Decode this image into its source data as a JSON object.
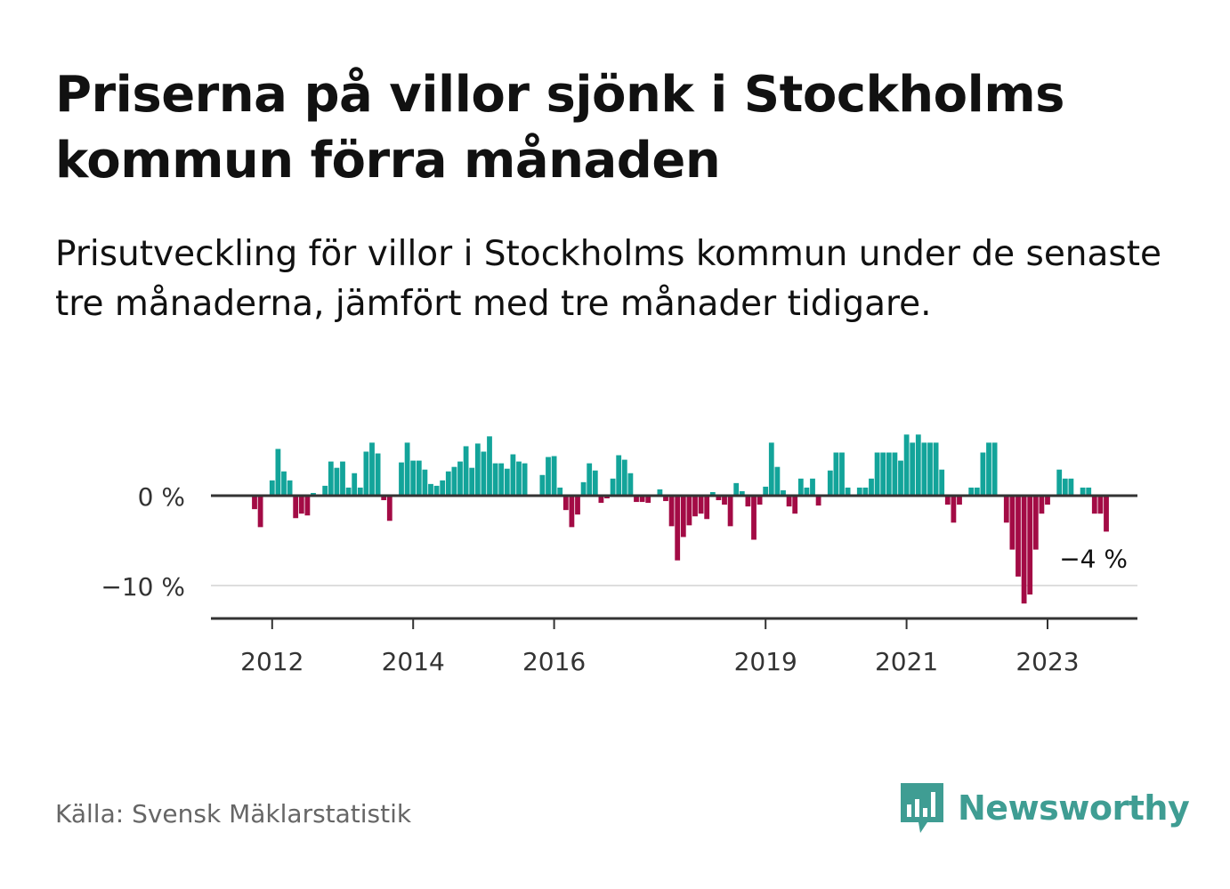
{
  "title": "Priserna på villor sjönk i Stockholms kommun förra månaden",
  "subtitle": "Prisutveckling för villor i Stockholms kommun under de senaste tre månaderna, jämfört med tre månader tidigare.",
  "source": "Källa: Svensk Mäklarstatistik",
  "brand": {
    "name": "Newsworthy",
    "icon": "newsworthy-logo-icon",
    "color": "#3f9d93"
  },
  "colors": {
    "positive": "#13a49a",
    "negative": "#a30b45",
    "axis": "#333333",
    "grid": "#dddddd"
  },
  "chart_data": {
    "type": "bar",
    "title": "Prisutveckling för villor i Stockholms kommun",
    "x_start": "2011-10",
    "x_step": "month",
    "ylim": [
      -14,
      6
    ],
    "y_ticks": [
      0,
      -10
    ],
    "y_tick_labels": [
      "0 %",
      "−10 %"
    ],
    "x_tick_labels": [
      "2012",
      "2014",
      "2016",
      "2019",
      "2021",
      "2023"
    ],
    "x_tick_indices": [
      3,
      27,
      51,
      87,
      111,
      135
    ],
    "values": [
      -1.5,
      -3.5,
      0,
      1.7,
      5.2,
      2.7,
      1.7,
      -2.5,
      -2,
      -2.2,
      0.3,
      0,
      1.1,
      3.8,
      3.1,
      3.8,
      0.9,
      2.5,
      0.9,
      4.9,
      5.9,
      4.7,
      -0.5,
      -2.8,
      0,
      3.7,
      5.9,
      3.9,
      3.9,
      2.9,
      1.3,
      1.1,
      1.7,
      2.7,
      3.2,
      3.8,
      5.5,
      3.1,
      5.8,
      4.9,
      6.6,
      3.6,
      3.6,
      3,
      4.6,
      3.8,
      3.6,
      0,
      0,
      2.3,
      4.3,
      4.4,
      0.9,
      -1.6,
      -3.5,
      -2.1,
      1.5,
      3.6,
      2.8,
      -0.8,
      -0.3,
      1.9,
      4.5,
      4,
      2.5,
      -0.7,
      -0.7,
      -0.8,
      0,
      0.7,
      -0.6,
      -3.4,
      -7.2,
      -4.6,
      -3.3,
      -2.3,
      -2,
      -2.6,
      0.4,
      -0.5,
      -1,
      -3.4,
      1.4,
      0.5,
      -1.2,
      -4.9,
      -1,
      1,
      5.9,
      3.2,
      0.6,
      -1.2,
      -2,
      1.9,
      0.9,
      1.9,
      -1.1,
      0,
      2.8,
      4.8,
      4.8,
      0.9,
      0,
      0.9,
      0.9,
      1.9,
      4.8,
      4.8,
      4.8,
      4.8,
      3.9,
      6.8,
      5.9,
      6.8,
      5.9,
      5.9,
      5.9,
      2.9,
      -1,
      -3,
      -1,
      0,
      0.9,
      0.9,
      4.8,
      5.9,
      5.9,
      0,
      -3,
      -6,
      -9,
      -12,
      -11,
      -6,
      -2,
      -1,
      0,
      2.9,
      1.9,
      1.9,
      0,
      0.9,
      0.9,
      -2,
      -2,
      -4
    ],
    "last_label": "−4 %"
  }
}
